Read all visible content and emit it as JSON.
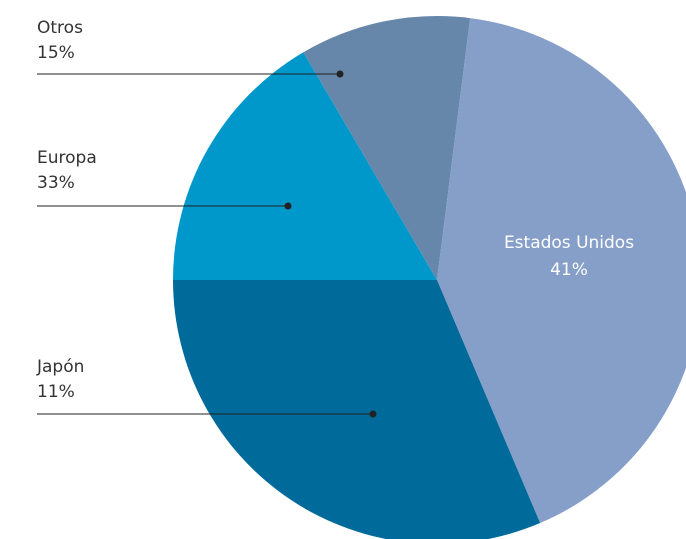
{
  "chart_data": {
    "type": "pie",
    "title": "",
    "slices": [
      {
        "label": "Estados Unidos",
        "value": 41,
        "value_label": "41%",
        "color": "#859fc9",
        "label_position": "inside"
      },
      {
        "label": "Japón",
        "value": 11,
        "value_label": "11%",
        "color": "#006a9b",
        "label_position": "outside-left"
      },
      {
        "label": "Europa",
        "value": 33,
        "value_label": "33%",
        "color": "#0097cb",
        "label_position": "outside-left"
      },
      {
        "label": "Otros",
        "value": 15,
        "value_label": "15%",
        "color": "#6687aa",
        "label_position": "outside-left"
      }
    ],
    "legend": "none"
  }
}
